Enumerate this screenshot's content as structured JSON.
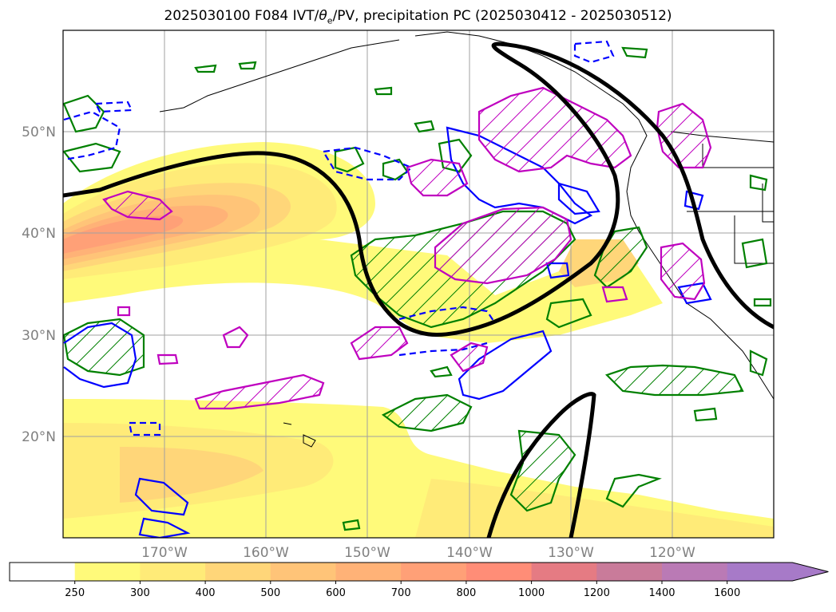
{
  "title": {
    "prefix": "2025030100 F084 IVT/",
    "theta": "θ",
    "theta_sub": "e",
    "suffix": "/PV, precipitation PC (2025030412 - 2025030512)"
  },
  "map": {
    "lon_range": [
      -180,
      -110
    ],
    "lat_range": [
      10,
      60
    ],
    "lat_ticks": [
      {
        "value": 50,
        "label": "50°N"
      },
      {
        "value": 40,
        "label": "40°N"
      },
      {
        "value": 30,
        "label": "30°N"
      },
      {
        "value": 20,
        "label": "20°N"
      }
    ],
    "lon_ticks": [
      {
        "value": -170,
        "label": "170°W"
      },
      {
        "value": -160,
        "label": "160°W"
      },
      {
        "value": -150,
        "label": "150°W"
      },
      {
        "value": -140,
        "label": "140°W"
      },
      {
        "value": -130,
        "label": "130°W"
      },
      {
        "value": -120,
        "label": "120°W"
      }
    ],
    "grid": true
  },
  "colorbar": {
    "levels": [
      "250",
      "300",
      "400",
      "500",
      "600",
      "700",
      "800",
      "1000",
      "1200",
      "1400",
      "1600"
    ],
    "colors": [
      "#ffffff",
      "#fffa7a",
      "#ffeb78",
      "#ffd679",
      "#ffc478",
      "#ffb277",
      "#ffa077",
      "#ff8d77",
      "#e57b83",
      "#c97b9a",
      "#ba7ab5",
      "#a77ac8"
    ],
    "extend": "max"
  },
  "colors": {
    "ivt_contour_black": "#000000",
    "precip_green": "#008000",
    "pv_blue": "#0000ff",
    "theta_magenta": "#bf00bf",
    "grid": "#a0a0a0",
    "tick_label": "#808080"
  }
}
